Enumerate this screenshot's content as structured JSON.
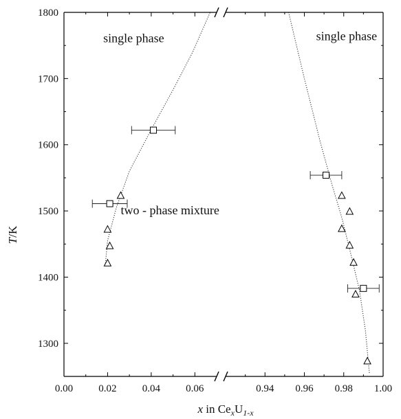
{
  "chart_data": {
    "type": "scatter",
    "broken_x_axis": true,
    "x_segments": [
      {
        "range": [
          0.0,
          0.07
        ],
        "ticks": [
          "0.00",
          "0.02",
          "0.04",
          "0.06"
        ]
      },
      {
        "range": [
          0.92,
          1.0
        ],
        "ticks": [
          "0.94",
          "0.96",
          "0.98",
          "1.00"
        ]
      }
    ],
    "x_break_between": [
      0.07,
      0.92
    ],
    "ylim": [
      1250,
      1800
    ],
    "y_ticks": [
      "1300",
      "1400",
      "1500",
      "1600",
      "1700",
      "1800"
    ],
    "y_tick_values": [
      1300,
      1400,
      1500,
      1600,
      1700,
      1800
    ],
    "x_tick_values": [
      0.0,
      0.02,
      0.04,
      0.06,
      0.94,
      0.96,
      0.98,
      1.0
    ],
    "ylabel": "T/K",
    "xlabel": {
      "prefix": "x",
      "mid": " in Ce",
      "sub1": "x",
      "mid2": "U",
      "sub2": "1-x"
    },
    "annotations": [
      {
        "text": "single phase",
        "x": 0.018,
        "y": 1755
      },
      {
        "text": "single phase",
        "x": 0.966,
        "y": 1758
      },
      {
        "text": "two - phase mixture",
        "x": 0.026,
        "y": 1495
      }
    ],
    "series": [
      {
        "marker": "square",
        "error_bars": true,
        "points": [
          {
            "x": 0.041,
            "y": 1622,
            "xerr": 0.01
          },
          {
            "x": 0.021,
            "y": 1511,
            "xerr": 0.008
          },
          {
            "x": 0.971,
            "y": 1554,
            "xerr": 0.008
          },
          {
            "x": 0.99,
            "y": 1383,
            "xerr": 0.008
          }
        ]
      },
      {
        "marker": "triangle",
        "points": [
          {
            "x": 0.026,
            "y": 1523
          },
          {
            "x": 0.02,
            "y": 1472
          },
          {
            "x": 0.021,
            "y": 1447
          },
          {
            "x": 0.02,
            "y": 1421
          },
          {
            "x": 0.979,
            "y": 1523
          },
          {
            "x": 0.983,
            "y": 1499
          },
          {
            "x": 0.979,
            "y": 1473
          },
          {
            "x": 0.983,
            "y": 1448
          },
          {
            "x": 0.985,
            "y": 1422
          },
          {
            "x": 0.986,
            "y": 1374
          },
          {
            "x": 0.992,
            "y": 1273
          }
        ]
      }
    ],
    "boundary_curves": [
      {
        "style": "dotted",
        "points": [
          [
            0.019,
            1421
          ],
          [
            0.02,
            1455
          ],
          [
            0.024,
            1505
          ],
          [
            0.03,
            1560
          ],
          [
            0.04,
            1623
          ],
          [
            0.05,
            1683
          ],
          [
            0.059,
            1740
          ],
          [
            0.067,
            1800
          ]
        ]
      },
      {
        "style": "dotted",
        "points": [
          [
            0.952,
            1800
          ],
          [
            0.96,
            1700
          ],
          [
            0.968,
            1605
          ],
          [
            0.974,
            1540
          ],
          [
            0.979,
            1490
          ],
          [
            0.984,
            1430
          ],
          [
            0.988,
            1380
          ],
          [
            0.991,
            1320
          ],
          [
            0.993,
            1255
          ]
        ]
      }
    ]
  }
}
